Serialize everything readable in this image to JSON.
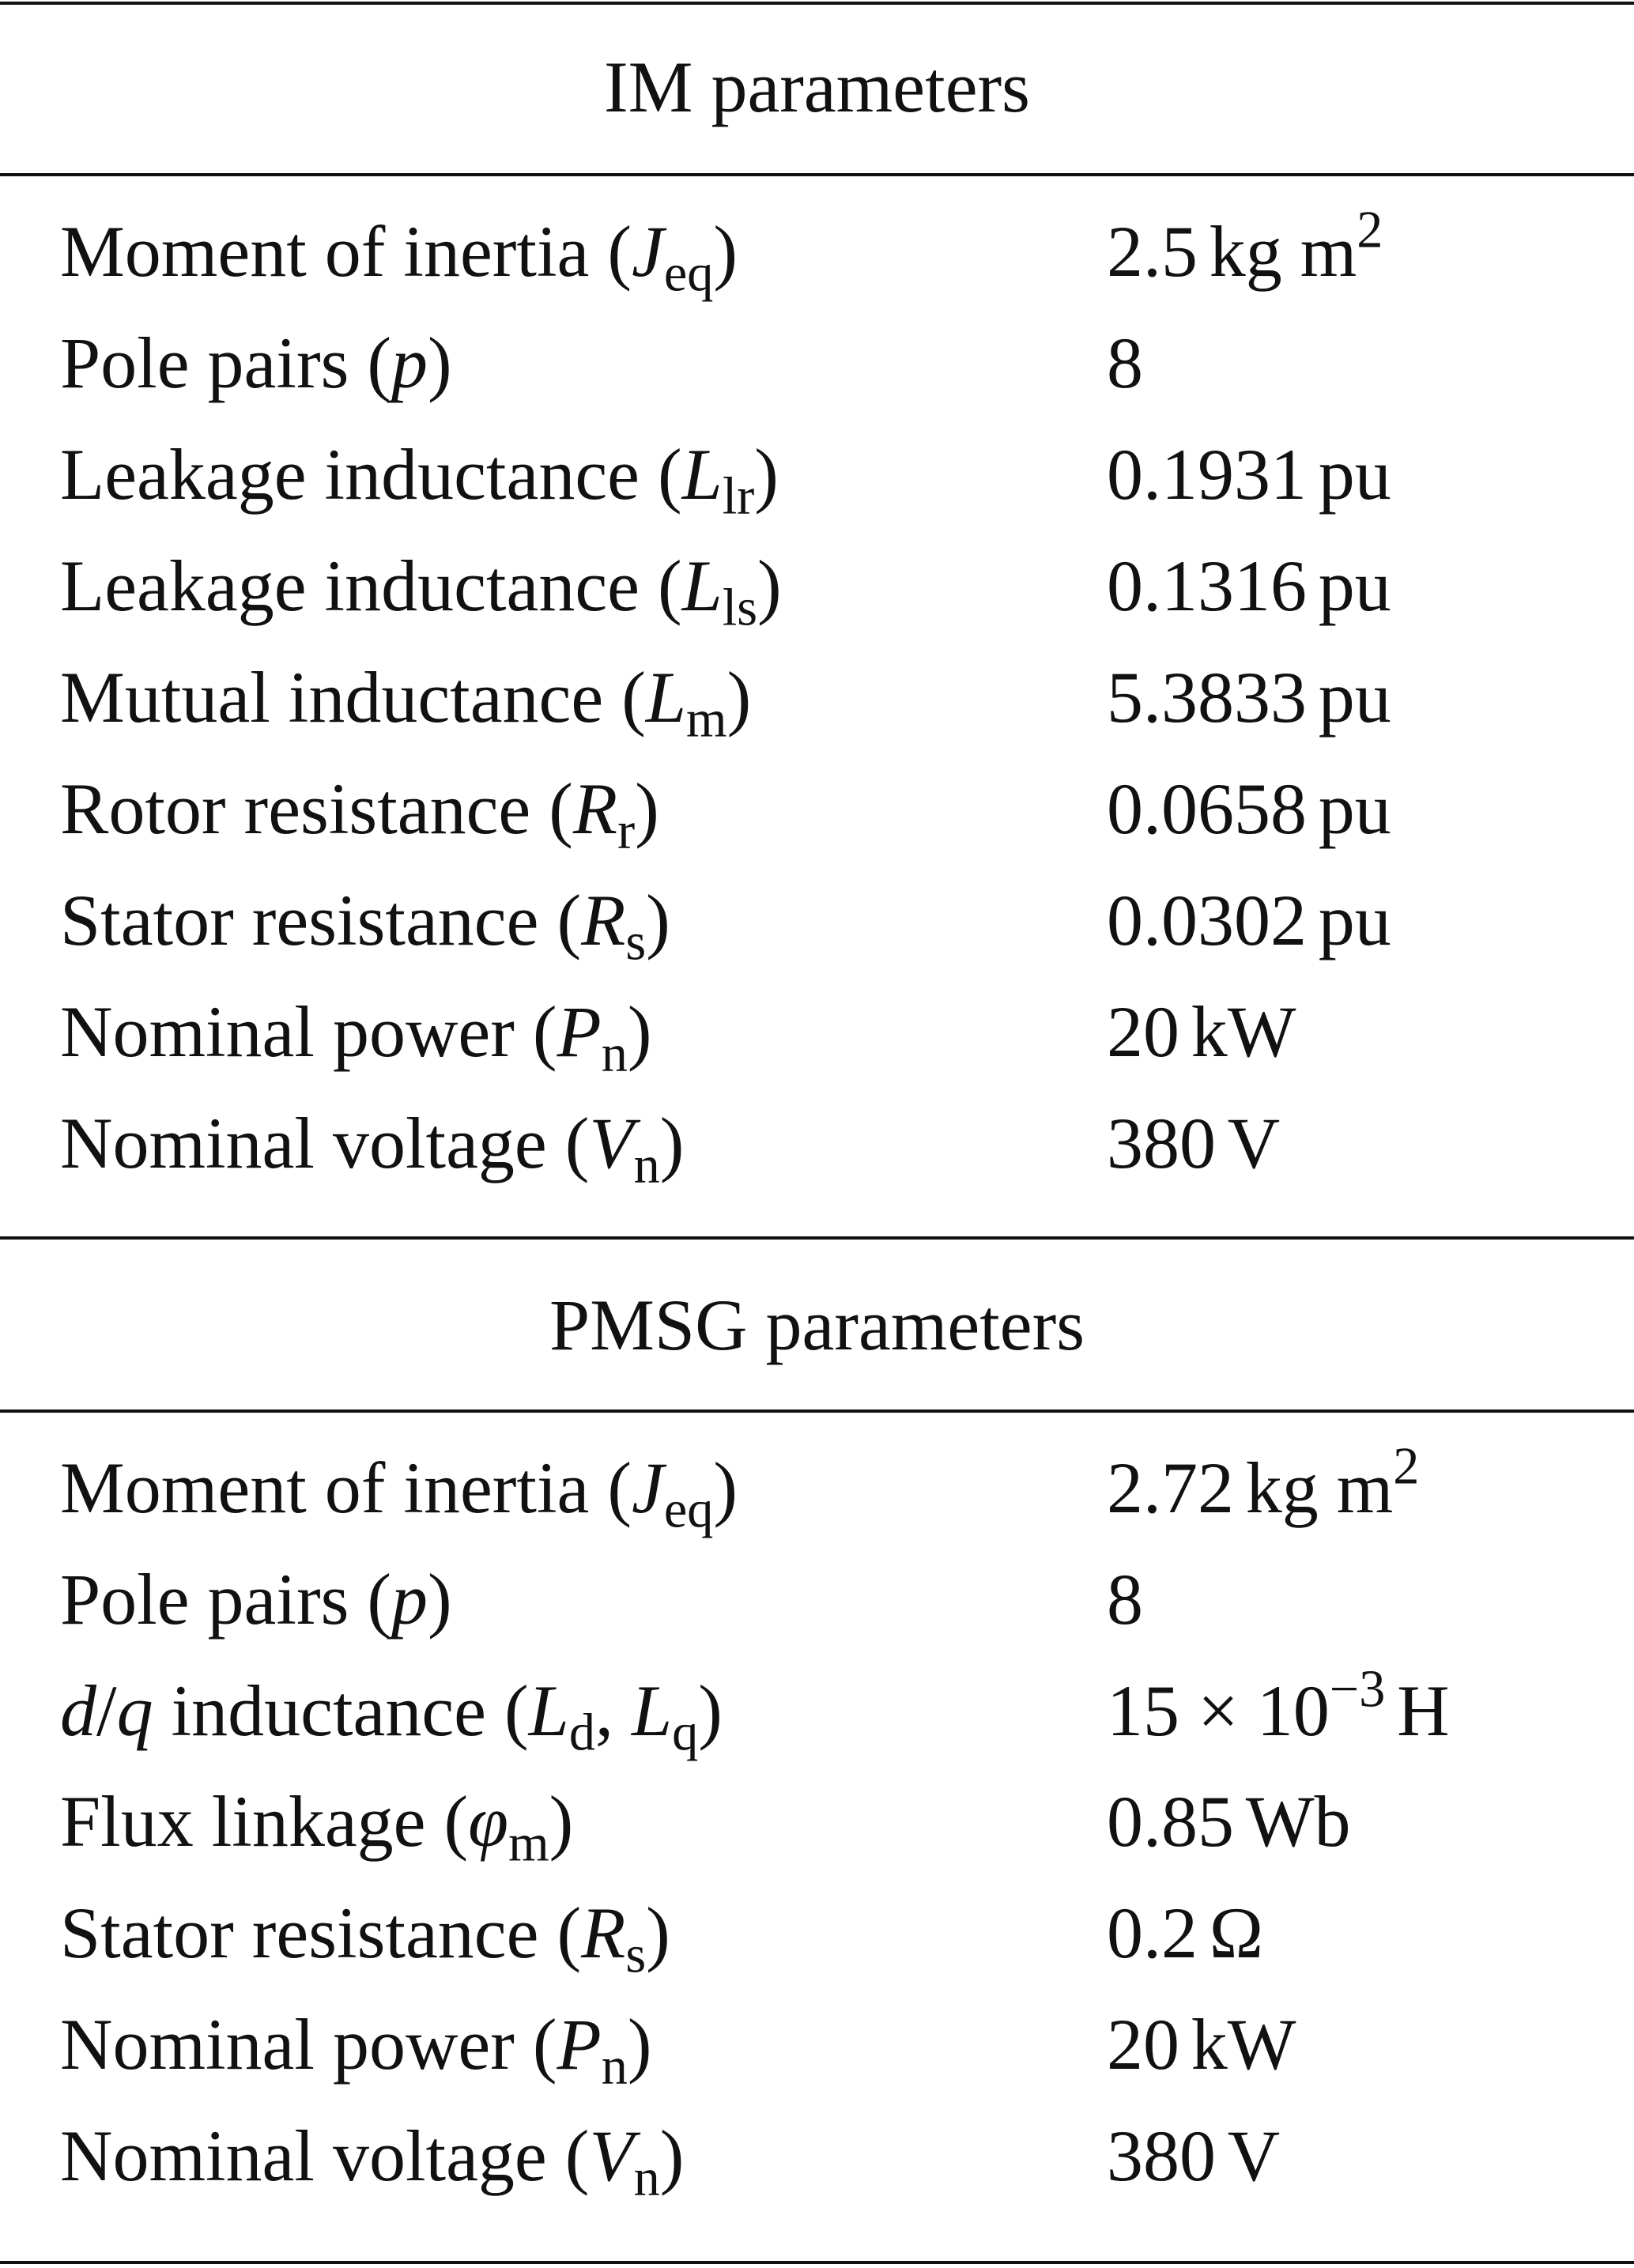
{
  "im": {
    "title": "IM parameters",
    "rows": [
      {
        "label": "Moment of inertia",
        "sym": "J",
        "sub": "eq",
        "value": "2.5",
        "unit": "kg m",
        "unit_sup": "2"
      },
      {
        "label": "Pole pairs",
        "sym": "p",
        "sub": "",
        "value": "8",
        "unit": "",
        "unit_sup": ""
      },
      {
        "label": "Leakage inductance",
        "sym": "L",
        "sub": "lr",
        "value": "0.1931",
        "unit": "pu",
        "unit_sup": ""
      },
      {
        "label": "Leakage inductance",
        "sym": "L",
        "sub": "ls",
        "value": "0.1316",
        "unit": "pu",
        "unit_sup": ""
      },
      {
        "label": "Mutual inductance",
        "sym": "L",
        "sub": "m",
        "value": "5.3833",
        "unit": "pu",
        "unit_sup": ""
      },
      {
        "label": "Rotor resistance",
        "sym": "R",
        "sub": "r",
        "value": "0.0658",
        "unit": "pu",
        "unit_sup": ""
      },
      {
        "label": "Stator resistance",
        "sym": "R",
        "sub": "s",
        "value": "0.0302",
        "unit": "pu",
        "unit_sup": ""
      },
      {
        "label": "Nominal power",
        "sym": "P",
        "sub": "n",
        "value": "20",
        "unit": "kW",
        "unit_sup": ""
      },
      {
        "label": "Nominal voltage",
        "sym": "V",
        "sub": "n",
        "value": "380",
        "unit": "V",
        "unit_sup": ""
      }
    ]
  },
  "pmsg": {
    "title": "PMSG parameters",
    "rows": [
      {
        "label": "Moment of inertia",
        "sym": "J",
        "sub": "eq",
        "value": "2.72",
        "unit": "kg m",
        "unit_sup": "2"
      },
      {
        "label": "Pole pairs",
        "sym": "p",
        "sub": "",
        "value": "8",
        "unit": "",
        "unit_sup": ""
      },
      {
        "label": "Flux linkage",
        "sym": "φ",
        "sub": "m",
        "value": "0.85",
        "unit": "Wb",
        "unit_sup": ""
      },
      {
        "label": "Stator resistance",
        "sym": "R",
        "sub": "s",
        "value": "0.2",
        "unit": "Ω",
        "unit_sup": ""
      },
      {
        "label": "Nominal power",
        "sym": "P",
        "sub": "n",
        "value": "20",
        "unit": "kW",
        "unit_sup": ""
      },
      {
        "label": "Nominal voltage",
        "sym": "V",
        "sub": "n",
        "value": "380",
        "unit": "V",
        "unit_sup": ""
      }
    ],
    "dq_row": {
      "label_prefix_1": "d",
      "label_slash": "/",
      "label_prefix_2": "q",
      "label": "inductance",
      "sym1": "L",
      "sub1": "d",
      "sym2": "L",
      "sub2": "q",
      "value": "15 × 10",
      "value_sup": "−3",
      "unit": "H"
    }
  }
}
